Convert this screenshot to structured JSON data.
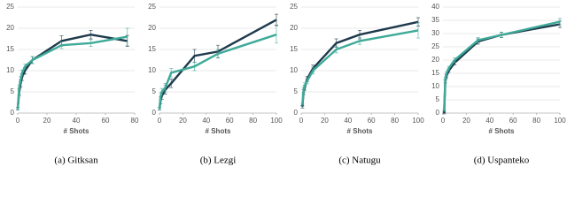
{
  "chart_data": [
    {
      "type": "line",
      "title": "(a) Gitksan",
      "x_label": "# Shots",
      "x": [
        0,
        1,
        2,
        3,
        5,
        10,
        30,
        50,
        75
      ],
      "xlim": [
        0,
        80
      ],
      "xticks": [
        0,
        20,
        40,
        60,
        80
      ],
      "ylim": [
        0,
        25
      ],
      "yticks": [
        0,
        5,
        10,
        15,
        20,
        25
      ],
      "grid": true,
      "series": [
        {
          "color": "#1e3a4c",
          "values": [
            1,
            5,
            7,
            8.5,
            10,
            12.5,
            17,
            18.5,
            17
          ],
          "errors": [
            0.3,
            0.8,
            0.8,
            0.8,
            0.8,
            0.8,
            1.2,
            1,
            1.3
          ]
        },
        {
          "color": "#3eaa98",
          "values": [
            1,
            6,
            8,
            9.5,
            11,
            12.5,
            16,
            16.5,
            18
          ],
          "errors": [
            0.3,
            0.6,
            0.6,
            0.6,
            0.6,
            0.8,
            0.8,
            0.8,
            2
          ]
        }
      ]
    },
    {
      "type": "line",
      "title": "(b) Lezgi",
      "x_label": "# Shots",
      "x": [
        0,
        1,
        2,
        5,
        10,
        30,
        50,
        100
      ],
      "xlim": [
        0,
        100
      ],
      "xticks": [
        0,
        20,
        40,
        60,
        80,
        100
      ],
      "ylim": [
        0,
        25
      ],
      "yticks": [
        0,
        5,
        10,
        15,
        20,
        25
      ],
      "grid": true,
      "series": [
        {
          "color": "#1e3a4c",
          "values": [
            1,
            3,
            4,
            5.5,
            7,
            13.5,
            14.5,
            22
          ],
          "errors": [
            0.3,
            0.8,
            0.8,
            1,
            1,
            1.5,
            1.5,
            1.3
          ]
        },
        {
          "color": "#3eaa98",
          "values": [
            1,
            4,
            5,
            6,
            9.5,
            11,
            14,
            18.5
          ],
          "errors": [
            0.3,
            0.8,
            0.8,
            1,
            1,
            1,
            1,
            2
          ]
        }
      ]
    },
    {
      "type": "line",
      "title": "(c) Natugu",
      "x_label": "# Shots",
      "x": [
        1,
        2,
        3,
        5,
        10,
        30,
        50,
        100
      ],
      "xlim": [
        0,
        100
      ],
      "xticks": [
        0,
        20,
        40,
        60,
        80,
        100
      ],
      "ylim": [
        0,
        25
      ],
      "yticks": [
        0,
        5,
        10,
        15,
        20,
        25
      ],
      "grid": true,
      "series": [
        {
          "color": "#1e3a4c",
          "values": [
            1.5,
            5,
            6,
            8,
            10.5,
            16.5,
            18.5,
            21.5
          ],
          "errors": [
            0.3,
            0.6,
            0.6,
            0.6,
            0.8,
            1,
            1,
            1
          ]
        },
        {
          "color": "#3eaa98",
          "values": [
            2,
            5.5,
            6.5,
            7.5,
            10,
            15,
            17,
            19.5
          ],
          "errors": [
            0.3,
            0.6,
            0.6,
            0.6,
            0.8,
            0.8,
            0.8,
            1.8
          ]
        }
      ]
    },
    {
      "type": "line",
      "title": "(d) Uspanteko",
      "x_label": "# Shots",
      "x": [
        1,
        2,
        3,
        5,
        10,
        30,
        50,
        100
      ],
      "xlim": [
        0,
        100
      ],
      "xticks": [
        0,
        20,
        40,
        60,
        80,
        100
      ],
      "ylim": [
        0,
        40
      ],
      "yticks": [
        0,
        5,
        10,
        15,
        20,
        25,
        30,
        35,
        40
      ],
      "grid": true,
      "series": [
        {
          "color": "#1e3a4c",
          "values": [
            0,
            12,
            14,
            16,
            19,
            27,
            29.5,
            33.5
          ],
          "errors": [
            0.3,
            0.6,
            0.6,
            0.6,
            0.8,
            1,
            1,
            1.2
          ]
        },
        {
          "color": "#3eaa98",
          "values": [
            1,
            13,
            15,
            17,
            20,
            27.5,
            29.5,
            34.5
          ],
          "errors": [
            0.3,
            0.6,
            0.6,
            0.6,
            0.8,
            1,
            1,
            1.2
          ]
        }
      ]
    }
  ]
}
